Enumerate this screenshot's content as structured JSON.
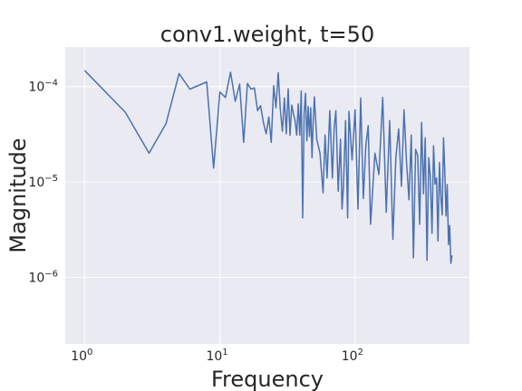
{
  "chart_data": {
    "type": "line",
    "title": "conv1.weight, t=50",
    "xlabel": "Frequency",
    "ylabel": "Magnitude",
    "xscale": "log",
    "yscale": "log",
    "xlim": [
      0.72,
      700
    ],
    "ylim": [
      2e-07,
      0.00026
    ],
    "grid": true,
    "colors": {
      "background": "#eaeaf2",
      "grid": "#ffffff",
      "line": "#4c72b0",
      "text": "#262626"
    },
    "xticks": [
      {
        "value": 1,
        "base": "10",
        "exp": "0"
      },
      {
        "value": 10,
        "base": "10",
        "exp": "1"
      },
      {
        "value": 100,
        "base": "10",
        "exp": "2"
      }
    ],
    "yticks": [
      {
        "value": 1e-06,
        "base": "10",
        "exp": "−6"
      },
      {
        "value": 1e-05,
        "base": "10",
        "exp": "−5"
      },
      {
        "value": 0.0001,
        "base": "10",
        "exp": "−4"
      }
    ],
    "series": [
      {
        "x": [
          1,
          2,
          3,
          4,
          5,
          6,
          8,
          9,
          10,
          11,
          12,
          13,
          14,
          15,
          16,
          17,
          18,
          19,
          20,
          21,
          22,
          23,
          24,
          25,
          26,
          27,
          28,
          29,
          30,
          31,
          32,
          33,
          34,
          35,
          36,
          37,
          38,
          39,
          40,
          41,
          42,
          43,
          44,
          45,
          46,
          47,
          48,
          49,
          50,
          52,
          55,
          58,
          60,
          62,
          65,
          68,
          70,
          72,
          75,
          78,
          80,
          82,
          85,
          88,
          90,
          95,
          100,
          105,
          110,
          115,
          120,
          125,
          130,
          140,
          150,
          160,
          170,
          180,
          190,
          200,
          210,
          220,
          230,
          240,
          250,
          260,
          270,
          280,
          290,
          300,
          310,
          320,
          330,
          340,
          350,
          360,
          370,
          380,
          390,
          400,
          410,
          420,
          430,
          440,
          450,
          460,
          470,
          480,
          490,
          500,
          510,
          520
        ],
        "y": [
          0.000148,
          5.4e-05,
          2e-05,
          4.1e-05,
          0.000137,
          9.4e-05,
          0.000112,
          1.4e-05,
          8.8e-05,
          7.7e-05,
          0.000142,
          7e-05,
          0.000106,
          2.6e-05,
          0.000108,
          9.4e-05,
          9.7e-05,
          5.6e-05,
          6.3e-05,
          4.2e-05,
          3.2e-05,
          4.8e-05,
          2.6e-05,
          0.000102,
          6e-05,
          0.00014,
          5.8e-05,
          3.4e-05,
          7.6e-05,
          3.2e-05,
          9.5e-05,
          3.1e-05,
          6.4e-05,
          5.2e-05,
          4.4e-05,
          3.1e-05,
          6.6e-05,
          3.1e-05,
          9e-05,
          4.2e-06,
          5.2e-05,
          8.5e-05,
          2.7e-05,
          6.2e-05,
          3e-05,
          6e-05,
          1.8e-05,
          4.3e-05,
          7.8e-05,
          2.8e-05,
          2e-05,
          7.7e-06,
          3.1e-05,
          1.1e-05,
          5.6e-05,
          1.1e-05,
          3.7e-05,
          5.6e-05,
          8e-06,
          2.8e-05,
          5.2e-06,
          9e-06,
          4.4e-05,
          4.2e-06,
          5.5e-05,
          1.7e-05,
          5.7e-05,
          5.2e-06,
          7.6e-05,
          6.7e-06,
          2.4e-05,
          3.9e-05,
          3.6e-06,
          2e-05,
          1.2e-05,
          7.7e-05,
          4.8e-06,
          4.4e-05,
          2.5e-06,
          1.8e-05,
          3.6e-05,
          9e-06,
          5.7e-05,
          1.6e-05,
          6.5e-06,
          3.1e-05,
          1.6e-06,
          2.2e-05,
          1.9e-05,
          3.6e-06,
          4.2e-05,
          7.5e-06,
          2.9e-05,
          1.5e-06,
          1.8e-05,
          1.1e-05,
          2.9e-06,
          2.4e-05,
          9.5e-06,
          1.1e-05,
          2.4e-06,
          1.6e-05,
          7.1e-06,
          4.5e-06,
          2.9e-05,
          1.3e-05,
          4.4e-06,
          9.4e-06,
          2.2e-06,
          3.5e-06,
          1.4e-06,
          1.7e-06
        ]
      }
    ]
  }
}
